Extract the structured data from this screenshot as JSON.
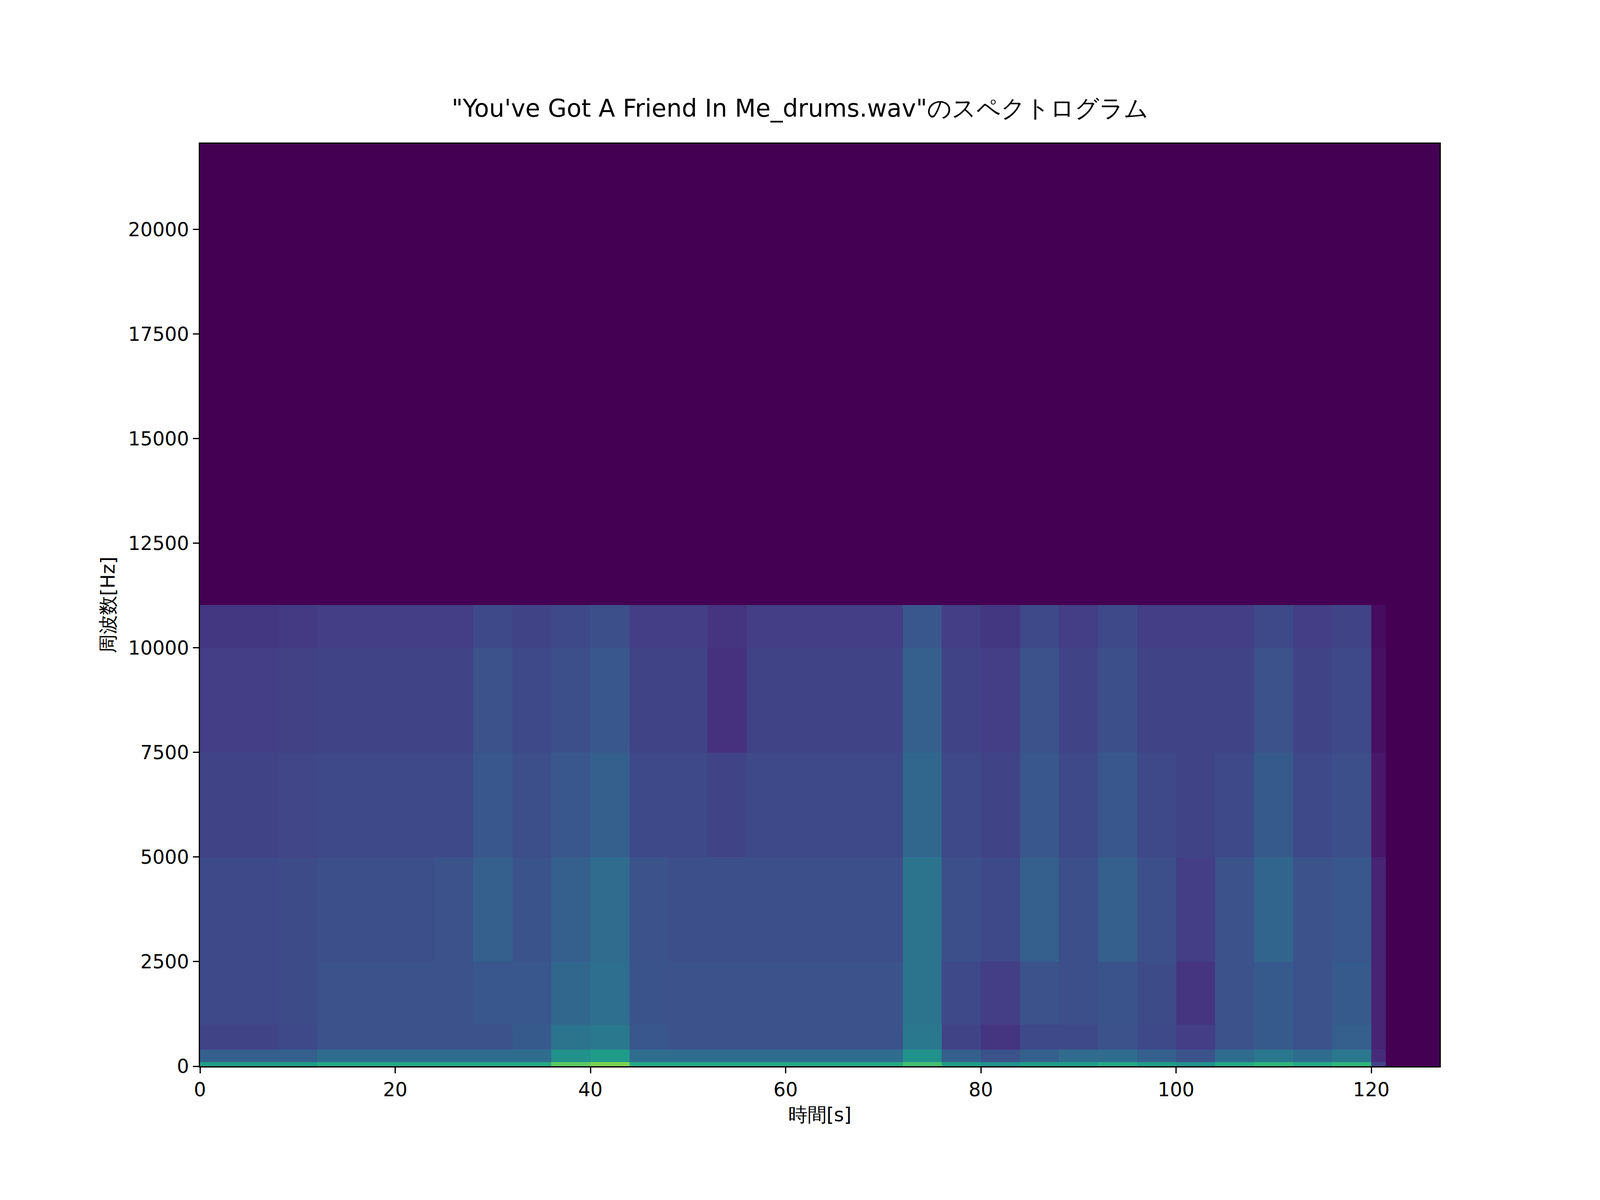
{
  "chart_data": {
    "type": "heatmap",
    "title": "\"You've Got A Friend In Me_drums.wav\"のスペクトログラム",
    "x_label": "時間[s]",
    "y_label": "周波数[Hz]",
    "x_edges": [
      0,
      4,
      8,
      12,
      16,
      20,
      24,
      28,
      32,
      36,
      40,
      44,
      48,
      52,
      56,
      60,
      64,
      68,
      72,
      76,
      80,
      84,
      88,
      92,
      96,
      100,
      104,
      108,
      112,
      116,
      120,
      121.5,
      127
    ],
    "y_edges": [
      0,
      100,
      400,
      1000,
      2500,
      5000,
      7500,
      10000,
      11025,
      22050
    ],
    "z": [
      [
        0.55,
        0.55,
        0.55,
        0.6,
        0.6,
        0.6,
        0.6,
        0.6,
        0.6,
        0.75,
        0.8,
        0.6,
        0.6,
        0.6,
        0.6,
        0.6,
        0.6,
        0.6,
        0.7,
        0.55,
        0.5,
        0.55,
        0.55,
        0.6,
        0.55,
        0.5,
        0.6,
        0.65,
        0.6,
        0.65,
        0.2,
        0
      ],
      [
        0.3,
        0.3,
        0.3,
        0.35,
        0.35,
        0.35,
        0.35,
        0.35,
        0.35,
        0.5,
        0.55,
        0.35,
        0.35,
        0.35,
        0.35,
        0.35,
        0.35,
        0.35,
        0.5,
        0.3,
        0.25,
        0.3,
        0.35,
        0.35,
        0.3,
        0.25,
        0.35,
        0.4,
        0.35,
        0.4,
        0.12,
        0
      ],
      [
        0.2,
        0.2,
        0.22,
        0.25,
        0.25,
        0.25,
        0.25,
        0.25,
        0.28,
        0.38,
        0.4,
        0.27,
        0.25,
        0.25,
        0.25,
        0.25,
        0.25,
        0.25,
        0.4,
        0.2,
        0.15,
        0.22,
        0.22,
        0.25,
        0.22,
        0.18,
        0.25,
        0.28,
        0.25,
        0.3,
        0.1,
        0
      ],
      [
        0.22,
        0.22,
        0.23,
        0.25,
        0.25,
        0.25,
        0.25,
        0.27,
        0.27,
        0.33,
        0.36,
        0.26,
        0.25,
        0.25,
        0.25,
        0.25,
        0.25,
        0.25,
        0.38,
        0.22,
        0.18,
        0.25,
        0.24,
        0.26,
        0.23,
        0.15,
        0.25,
        0.28,
        0.25,
        0.28,
        0.1,
        0
      ],
      [
        0.22,
        0.22,
        0.23,
        0.24,
        0.24,
        0.24,
        0.25,
        0.3,
        0.26,
        0.3,
        0.35,
        0.25,
        0.24,
        0.24,
        0.24,
        0.24,
        0.24,
        0.24,
        0.38,
        0.24,
        0.22,
        0.3,
        0.24,
        0.3,
        0.24,
        0.18,
        0.25,
        0.32,
        0.25,
        0.27,
        0.1,
        0
      ],
      [
        0.2,
        0.2,
        0.21,
        0.22,
        0.22,
        0.22,
        0.22,
        0.27,
        0.24,
        0.27,
        0.3,
        0.22,
        0.22,
        0.2,
        0.22,
        0.22,
        0.22,
        0.22,
        0.33,
        0.22,
        0.2,
        0.27,
        0.22,
        0.27,
        0.22,
        0.2,
        0.22,
        0.28,
        0.22,
        0.24,
        0.06,
        0
      ],
      [
        0.18,
        0.18,
        0.19,
        0.2,
        0.2,
        0.2,
        0.2,
        0.25,
        0.22,
        0.24,
        0.27,
        0.2,
        0.2,
        0.14,
        0.2,
        0.2,
        0.2,
        0.2,
        0.3,
        0.2,
        0.18,
        0.25,
        0.2,
        0.24,
        0.2,
        0.2,
        0.2,
        0.25,
        0.2,
        0.22,
        0.04,
        0
      ],
      [
        0.16,
        0.16,
        0.17,
        0.18,
        0.18,
        0.18,
        0.18,
        0.22,
        0.2,
        0.22,
        0.24,
        0.18,
        0.18,
        0.15,
        0.18,
        0.18,
        0.18,
        0.18,
        0.27,
        0.18,
        0.16,
        0.22,
        0.18,
        0.22,
        0.18,
        0.18,
        0.18,
        0.22,
        0.18,
        0.2,
        0.03,
        0
      ],
      [
        0,
        0,
        0,
        0,
        0,
        0,
        0,
        0,
        0,
        0,
        0,
        0,
        0,
        0,
        0,
        0,
        0,
        0,
        0,
        0,
        0,
        0,
        0,
        0,
        0,
        0,
        0,
        0,
        0,
        0,
        0,
        0
      ]
    ],
    "zlim": [
      0,
      1
    ],
    "xlim": [
      0,
      127
    ],
    "xticks": [
      0,
      20,
      40,
      60,
      80,
      100,
      120
    ],
    "ylim": [
      0,
      22050
    ],
    "yticks": [
      0,
      2500,
      5000,
      7500,
      10000,
      12500,
      15000,
      17500,
      20000
    ],
    "grid": false
  }
}
